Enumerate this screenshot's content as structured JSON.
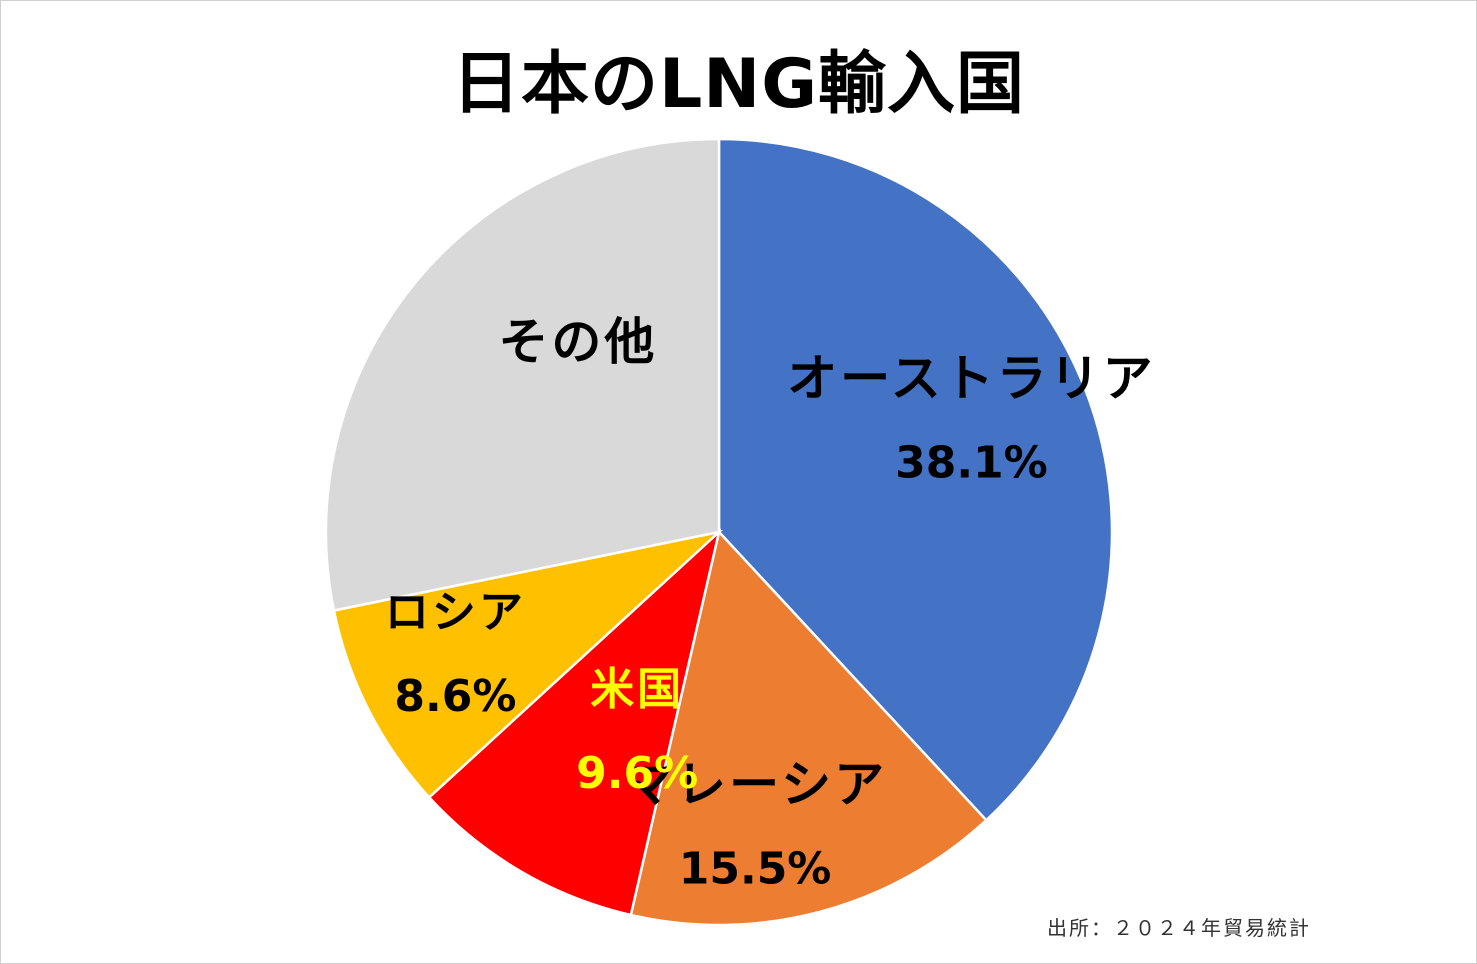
{
  "chart_data": {
    "type": "pie",
    "title": "日本のLNG輸入国",
    "slices": [
      {
        "name": "オーストラリア",
        "value": 38.1,
        "label": "38.1%",
        "color": "#4472C4",
        "text_color": "#000000"
      },
      {
        "name": "マレーシア",
        "value": 15.5,
        "label": "15.5%",
        "color": "#ED7D31",
        "text_color": "#000000"
      },
      {
        "name": "米国",
        "value": 9.6,
        "label": "9.6%",
        "color": "#FF0000",
        "text_color": "#FFFF00"
      },
      {
        "name": "ロシア",
        "value": 8.6,
        "label": "8.6%",
        "color": "#FFC000",
        "text_color": "#000000"
      },
      {
        "name": "その他",
        "value": 28.2,
        "label": "",
        "color": "#D9D9D9",
        "text_color": "#000000"
      }
    ],
    "start_angle": "12 o'clock",
    "direction": "clockwise",
    "legend": "none"
  },
  "source_note": "出所：２０２４年貿易統計"
}
